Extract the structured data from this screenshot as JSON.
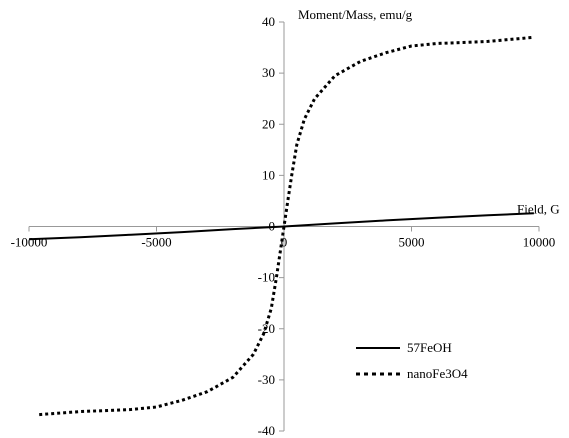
{
  "chart_data": {
    "type": "line",
    "xlabel": "Field, G",
    "ylabel": "Moment/Mass, emu/g",
    "xlim": [
      -10000,
      10000
    ],
    "ylim": [
      -40,
      40
    ],
    "xticks": [
      -10000,
      -5000,
      0,
      5000,
      10000
    ],
    "yticks": [
      -40,
      -30,
      -20,
      -10,
      0,
      10,
      20,
      30,
      40
    ],
    "grid": false,
    "legend_position": "bottom-right",
    "series": [
      {
        "name": "57FeOH",
        "line_style": "solid",
        "color": "#000000",
        "x": [
          -10000,
          -8000,
          -6000,
          -4000,
          -2000,
          0,
          2000,
          4000,
          6000,
          8000,
          9800
        ],
        "y": [
          -2.5,
          -2.1,
          -1.6,
          -1.1,
          -0.5,
          0,
          0.6,
          1.2,
          1.7,
          2.2,
          2.6
        ]
      },
      {
        "name": "nanoFe3O4",
        "line_style": "dashed",
        "color": "#000000",
        "x": [
          -9600,
          -8000,
          -6000,
          -5000,
          -4000,
          -3000,
          -2000,
          -1200,
          -800,
          -500,
          -300,
          -150,
          0,
          150,
          300,
          500,
          800,
          1200,
          2000,
          3000,
          4000,
          5000,
          6000,
          8000,
          9800
        ],
        "y": [
          -36.8,
          -36.2,
          -35.8,
          -35.3,
          -34,
          -32.3,
          -29.5,
          -25,
          -21,
          -16,
          -10,
          -5,
          0,
          5,
          10,
          16,
          21,
          25,
          29.5,
          32.3,
          34,
          35.3,
          35.8,
          36.2,
          37
        ]
      }
    ]
  }
}
